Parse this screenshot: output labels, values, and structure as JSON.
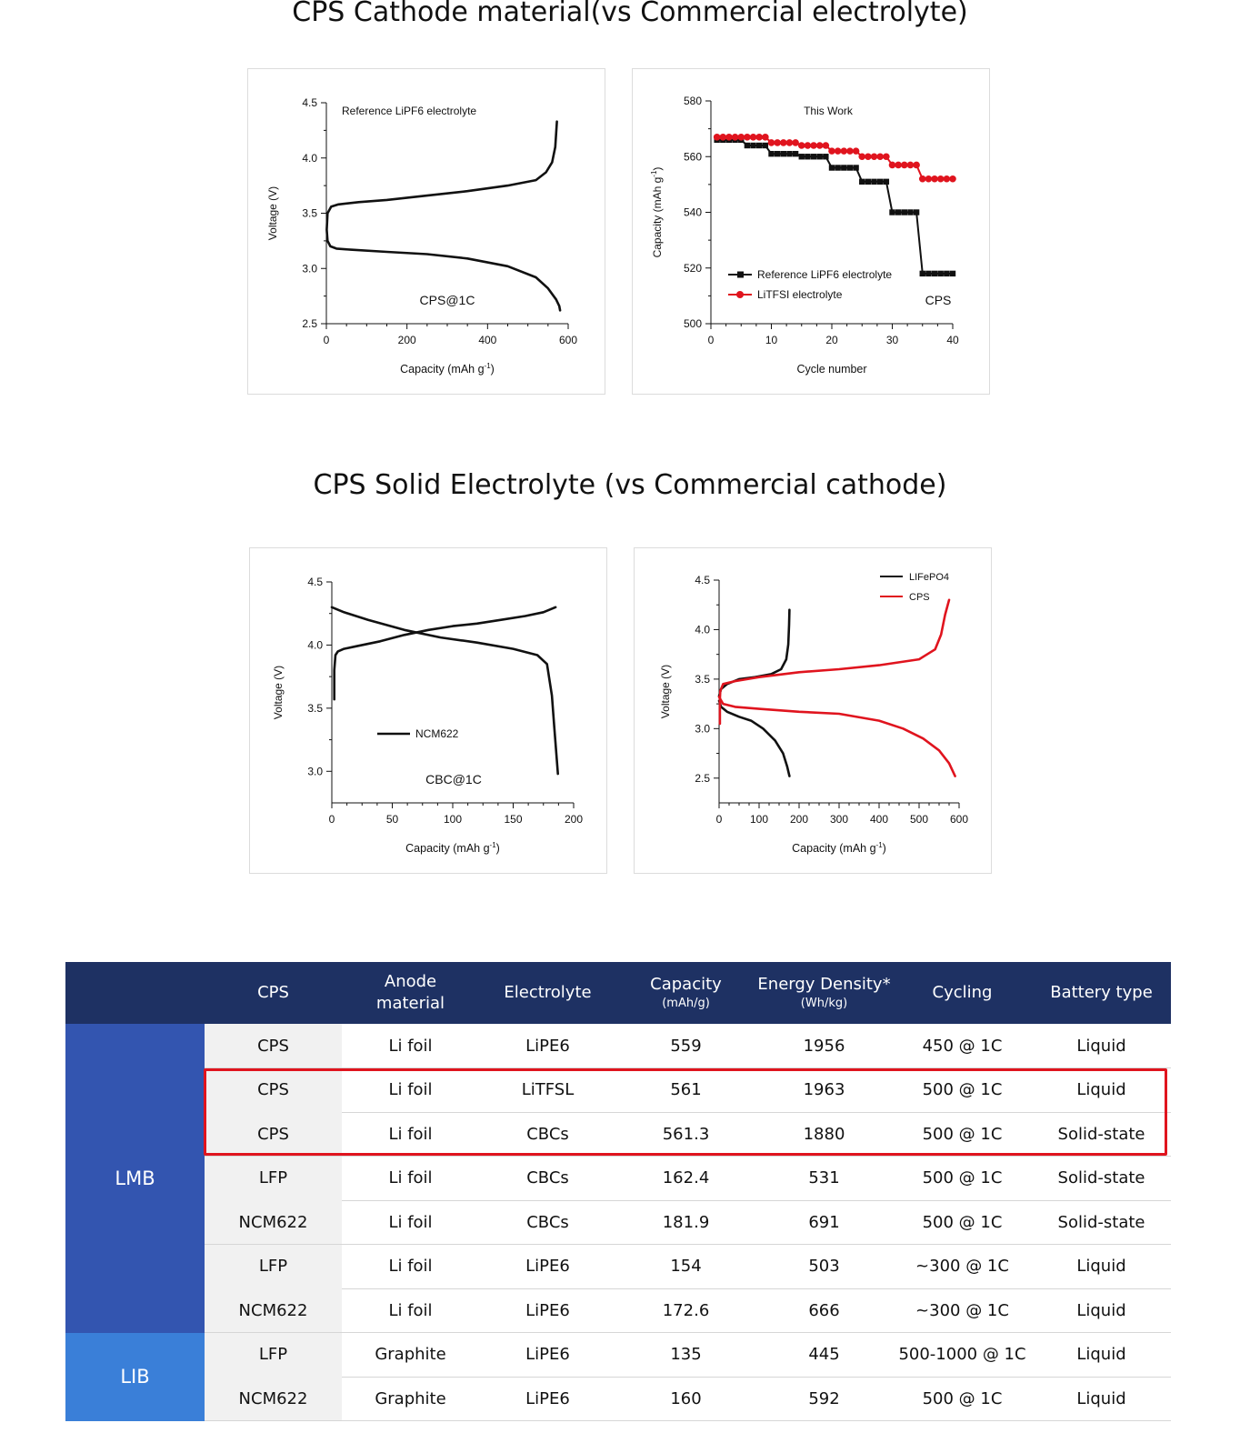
{
  "titles": {
    "section1": "CPS Cathode material(vs Commercial electrolyte)",
    "section2": "CPS Solid Electrolyte (vs Commercial cathode)"
  },
  "chart_data": [
    {
      "id": "c1",
      "type": "line",
      "title": "",
      "annotation_top": "Reference LiPF6 electrolyte",
      "annotation_center": "CPS@1C",
      "xlabel": "Capacity  (mAh g",
      "xlabel_sup": "-1",
      "xlabel_end": ")",
      "ylabel": "Voltage (V)",
      "xlim": [
        0,
        600
      ],
      "ylim": [
        2.5,
        4.5
      ],
      "xticks": [
        "0",
        "200",
        "400",
        "600"
      ],
      "yticks": [
        "2.5",
        "3.0",
        "3.5",
        "4.0",
        "4.5"
      ],
      "series": [
        {
          "color": "#111111",
          "x": [
            580,
            578,
            570,
            550,
            520,
            450,
            350,
            250,
            150,
            60,
            25,
            10,
            3,
            1,
            3,
            12,
            30,
            80,
            150,
            250,
            350,
            450,
            520,
            545,
            560,
            568,
            572
          ],
          "y": [
            2.62,
            2.66,
            2.72,
            2.82,
            2.92,
            3.02,
            3.09,
            3.13,
            3.15,
            3.17,
            3.18,
            3.2,
            3.25,
            3.35,
            3.5,
            3.56,
            3.58,
            3.6,
            3.62,
            3.66,
            3.7,
            3.75,
            3.8,
            3.87,
            3.96,
            4.1,
            4.33
          ]
        }
      ]
    },
    {
      "id": "c2",
      "type": "line",
      "title": "",
      "annotation_top": "This Work",
      "annotation_center": "CPS",
      "xlabel": "Cycle number",
      "ylabel": "Capacity (mAh g",
      "ylabel_sup": "-1",
      "ylabel_end": ")",
      "xlim": [
        0,
        40
      ],
      "ylim": [
        500,
        580
      ],
      "xticks": [
        "0",
        "10",
        "20",
        "30",
        "40"
      ],
      "yticks": [
        "500",
        "520",
        "540",
        "560",
        "580"
      ],
      "legend": [
        {
          "label": "Reference LiPF6 electrolyte",
          "color": "#111111",
          "marker": "square"
        },
        {
          "label": "LiTFSI electrolyte",
          "color": "#e0141e",
          "marker": "circle"
        }
      ],
      "series": [
        {
          "color": "#111111",
          "marker": "square",
          "x": [
            1,
            2,
            3,
            4,
            5,
            6,
            7,
            8,
            9,
            10,
            11,
            12,
            13,
            14,
            15,
            16,
            17,
            18,
            19,
            20,
            21,
            22,
            23,
            24,
            25,
            26,
            27,
            28,
            29,
            30,
            31,
            32,
            33,
            34,
            35,
            36,
            37,
            38,
            39,
            40
          ],
          "y": [
            566,
            566,
            566,
            566,
            566,
            564,
            564,
            564,
            564,
            561,
            561,
            561,
            561,
            561,
            560,
            560,
            560,
            560,
            560,
            556,
            556,
            556,
            556,
            556,
            551,
            551,
            551,
            551,
            551,
            540,
            540,
            540,
            540,
            540,
            518,
            518,
            518,
            518,
            518,
            518
          ]
        },
        {
          "color": "#e0141e",
          "marker": "circle",
          "x": [
            1,
            2,
            3,
            4,
            5,
            6,
            7,
            8,
            9,
            10,
            11,
            12,
            13,
            14,
            15,
            16,
            17,
            18,
            19,
            20,
            21,
            22,
            23,
            24,
            25,
            26,
            27,
            28,
            29,
            30,
            31,
            32,
            33,
            34,
            35,
            36,
            37,
            38,
            39,
            40
          ],
          "y": [
            567,
            567,
            567,
            567,
            567,
            567,
            567,
            567,
            567,
            565,
            565,
            565,
            565,
            565,
            564,
            564,
            564,
            564,
            564,
            562,
            562,
            562,
            562,
            562,
            560,
            560,
            560,
            560,
            560,
            557,
            557,
            557,
            557,
            557,
            552,
            552,
            552,
            552,
            552,
            552
          ]
        }
      ]
    },
    {
      "id": "c3",
      "type": "line",
      "title": "",
      "annotation_center": "CBC@1C",
      "xlabel": "Capacity  (mAh g",
      "xlabel_sup": "-1",
      "xlabel_end": ")",
      "ylabel": "Voltage (V)",
      "xlim": [
        0,
        200
      ],
      "ylim": [
        2.75,
        4.5
      ],
      "xticks": [
        "0",
        "50",
        "100",
        "150",
        "200"
      ],
      "yticks": [
        "3.0",
        "3.5",
        "4.0",
        "4.5"
      ],
      "legend": [
        {
          "label": "NCM622",
          "color": "#111111",
          "marker": "line"
        }
      ],
      "series": [
        {
          "color": "#111111",
          "x": [
            2,
            2,
            3,
            5,
            10,
            20,
            40,
            60,
            80,
            100,
            120,
            140,
            160,
            175,
            185
          ],
          "y": [
            3.57,
            3.8,
            3.92,
            3.95,
            3.97,
            3.99,
            4.03,
            4.08,
            4.12,
            4.15,
            4.17,
            4.2,
            4.23,
            4.26,
            4.3
          ]
        },
        {
          "color": "#111111",
          "x": [
            0,
            10,
            30,
            60,
            90,
            120,
            150,
            170,
            178,
            182,
            184,
            186,
            187
          ],
          "y": [
            4.3,
            4.26,
            4.2,
            4.12,
            4.06,
            4.02,
            3.97,
            3.92,
            3.85,
            3.6,
            3.35,
            3.1,
            2.98
          ]
        }
      ]
    },
    {
      "id": "c4",
      "type": "line",
      "title": "",
      "xlabel": "Capacity  (mAh g",
      "xlabel_sup": "-1",
      "xlabel_end": ")",
      "ylabel": "Voltage (V)",
      "xlim": [
        0,
        600
      ],
      "ylim": [
        2.25,
        4.5
      ],
      "xticks": [
        "0",
        "100",
        "200",
        "300",
        "400",
        "500",
        "600"
      ],
      "yticks": [
        "2.5",
        "3.0",
        "3.5",
        "4.0",
        "4.5"
      ],
      "legend": [
        {
          "label": "LIFePO4",
          "color": "#111111",
          "marker": "line"
        },
        {
          "label": "CPS",
          "color": "#e0141e",
          "marker": "line"
        }
      ],
      "series": [
        {
          "color": "#111111",
          "x": [
            0,
            5,
            20,
            50,
            90,
            130,
            155,
            168,
            173,
            175,
            176
          ],
          "y": [
            3.33,
            3.4,
            3.45,
            3.5,
            3.52,
            3.55,
            3.6,
            3.7,
            3.85,
            4.05,
            4.2
          ]
        },
        {
          "color": "#111111",
          "x": [
            0,
            5,
            20,
            50,
            80,
            110,
            140,
            160,
            170,
            176
          ],
          "y": [
            3.28,
            3.22,
            3.17,
            3.12,
            3.08,
            3.0,
            2.88,
            2.75,
            2.62,
            2.52
          ]
        },
        {
          "color": "#e0141e",
          "x": [
            2,
            2,
            3,
            10,
            40,
            100,
            200,
            300,
            400,
            500,
            540,
            555,
            565,
            575
          ],
          "y": [
            3.05,
            3.3,
            3.38,
            3.45,
            3.48,
            3.52,
            3.57,
            3.6,
            3.64,
            3.7,
            3.8,
            3.95,
            4.15,
            4.3
          ]
        },
        {
          "color": "#e0141e",
          "x": [
            0,
            10,
            40,
            100,
            200,
            300,
            400,
            460,
            510,
            550,
            575,
            590
          ],
          "y": [
            3.32,
            3.25,
            3.22,
            3.2,
            3.17,
            3.15,
            3.08,
            3.0,
            2.9,
            2.78,
            2.65,
            2.52
          ]
        }
      ]
    }
  ],
  "table": {
    "headers": [
      {
        "label": "",
        "unit": ""
      },
      {
        "label": "CPS",
        "unit": ""
      },
      {
        "label": "Anode",
        "label2": "material",
        "unit": ""
      },
      {
        "label": "Electrolyte",
        "unit": ""
      },
      {
        "label": "Capacity",
        "unit": "(mAh/g)"
      },
      {
        "label": "Energy Density*",
        "unit": "(Wh/kg)"
      },
      {
        "label": "Cycling",
        "unit": ""
      },
      {
        "label": "Battery type",
        "unit": ""
      }
    ],
    "groups": [
      {
        "label": "LMB",
        "rows": 7,
        "color": "#3355b0"
      },
      {
        "label": "LIB",
        "rows": 2,
        "color": "#3a7fd8"
      }
    ],
    "rows": [
      [
        "CPS",
        "Li foil",
        "LiPE6",
        "559",
        "1956",
        "450 @ 1C",
        "Liquid"
      ],
      [
        "CPS",
        "Li foil",
        "LiTFSL",
        "561",
        "1963",
        "500 @ 1C",
        "Liquid"
      ],
      [
        "CPS",
        "Li foil",
        "CBCs",
        "561.3",
        "1880",
        "500 @ 1C",
        "Solid-state"
      ],
      [
        "LFP",
        "Li foil",
        "CBCs",
        "162.4",
        "531",
        "500 @ 1C",
        "Solid-state"
      ],
      [
        "NCM622",
        "Li foil",
        "CBCs",
        "181.9",
        "691",
        "500 @ 1C",
        "Solid-state"
      ],
      [
        "LFP",
        "Li foil",
        "LiPE6",
        "154",
        "503",
        "~300 @ 1C",
        "Liquid"
      ],
      [
        "NCM622",
        "Li foil",
        "LiPE6",
        "172.6",
        "666",
        "~300 @ 1C",
        "Liquid"
      ],
      [
        "LFP",
        "Graphite",
        "LiPE6",
        "135",
        "445",
        "500-1000 @ 1C",
        "Liquid"
      ],
      [
        "NCM622",
        "Graphite",
        "LiPE6",
        "160",
        "592",
        "500 @ 1C",
        "Liquid"
      ]
    ]
  }
}
